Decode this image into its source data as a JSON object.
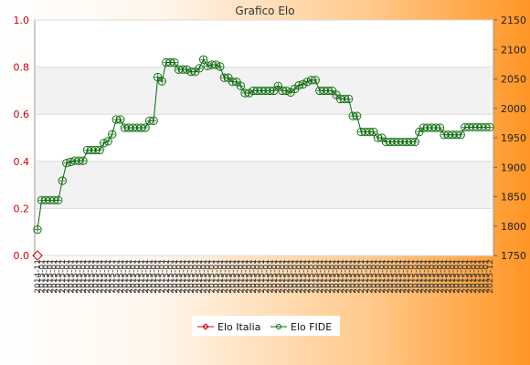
{
  "chart_data": {
    "type": "line",
    "title": "Grafico Elo",
    "left_axis": {
      "min": 0.0,
      "max": 1.0,
      "ticks": [
        "0.0",
        "0.2",
        "0.4",
        "0.6",
        "0.8",
        "1.0"
      ]
    },
    "right_axis": {
      "min": 1750,
      "max": 2150,
      "ticks": [
        "1750",
        "1800",
        "1850",
        "1900",
        "1950",
        "2000",
        "2050",
        "2100",
        "2150"
      ]
    },
    "x_start_label": "2014-11",
    "x_end_label": "2025-12",
    "x_repeat_label": "2015-01",
    "series": [
      {
        "name": "Elo Italia",
        "axis": "left",
        "color": "#cc0000",
        "values": [
          0.0
        ]
      },
      {
        "name": "Elo FIDE",
        "axis": "right",
        "color": "#0a6a0a",
        "values": [
          1794,
          1844,
          1844,
          1844,
          1844,
          1844,
          1877,
          1907,
          1909,
          1911,
          1911,
          1911,
          1929,
          1929,
          1929,
          1929,
          1941,
          1944,
          1956,
          1981,
          1981,
          1967,
          1967,
          1967,
          1967,
          1967,
          1967,
          1979,
          1979,
          2053,
          2046,
          2078,
          2078,
          2078,
          2066,
          2066,
          2066,
          2062,
          2062,
          2068,
          2083,
          2072,
          2074,
          2074,
          2071,
          2052,
          2052,
          2045,
          2045,
          2038,
          2026,
          2026,
          2030,
          2030,
          2030,
          2030,
          2030,
          2030,
          2038,
          2030,
          2030,
          2027,
          2033,
          2039,
          2041,
          2045,
          2048,
          2048,
          2030,
          2030,
          2030,
          2030,
          2023,
          2016,
          2016,
          2016,
          1987,
          1987,
          1960,
          1960,
          1960,
          1960,
          1950,
          1950,
          1943,
          1943,
          1943,
          1943,
          1943,
          1943,
          1943,
          1943,
          1960,
          1967,
          1967,
          1967,
          1967,
          1967,
          1955,
          1955,
          1955,
          1955,
          1955,
          1968,
          1968,
          1968,
          1968,
          1968,
          1968,
          1968
        ]
      }
    ],
    "legend_position": "bottom-center"
  }
}
